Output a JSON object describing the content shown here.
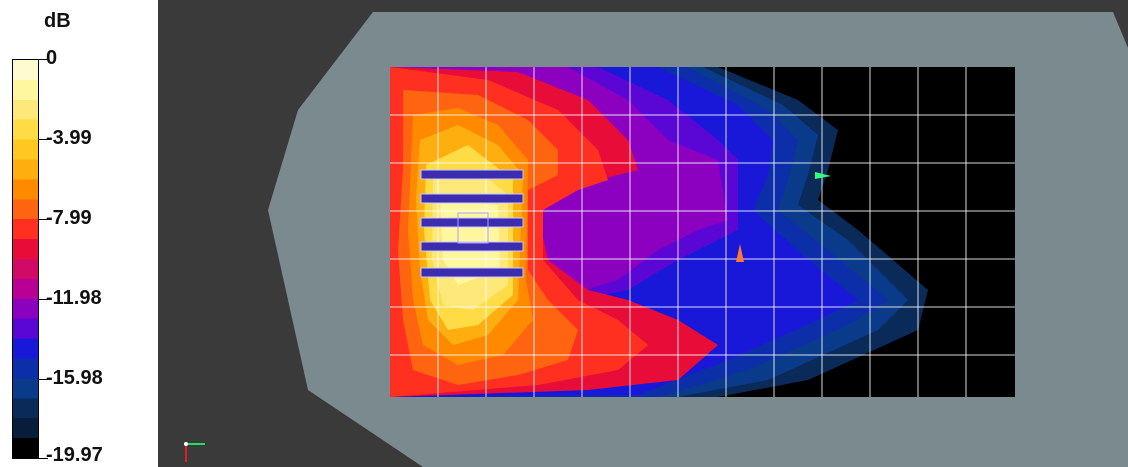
{
  "legend": {
    "unit": "dB",
    "labels": [
      "0",
      "-3.99",
      "-7.99",
      "-11.98",
      "-15.98",
      "-19.97"
    ],
    "colors": [
      "#fffbd0",
      "#fff6a0",
      "#ffe87a",
      "#ffdb45",
      "#ffc820",
      "#ffae10",
      "#ff8a00",
      "#ff6410",
      "#ff3020",
      "#e80c38",
      "#d00a66",
      "#b80094",
      "#8c00c0",
      "#5a06d4",
      "#1a18d8",
      "#0c2ea8",
      "#0a3a8a",
      "#0a2a5a",
      "#081c3c",
      "#000000"
    ]
  },
  "viewport": {
    "background": "#3a3a3a",
    "coverage_color": "#7a8a8e",
    "axis_icon": "axis-triad-icon"
  }
}
